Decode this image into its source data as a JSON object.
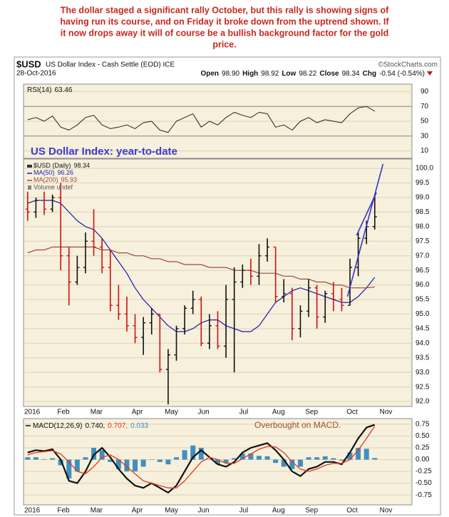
{
  "headline": [
    "The dollar staged a significant rally October, but this rally is showing signs of",
    "having run its course, and on Friday it broke down from the uptrend shown. If",
    "it now drops away it will of course be a bullish background factor for the gold",
    "price."
  ],
  "header": {
    "symbol": "$USD",
    "name": "US Dollar Index - Cash Settle (EOD) ICE",
    "source": "©StockCharts.com",
    "date": "28-Oct-2016",
    "quote": [
      [
        "Open",
        "98.90"
      ],
      [
        "High",
        "98.92"
      ],
      [
        "Low",
        "98.22"
      ],
      [
        "Close",
        "98.34"
      ],
      [
        "Chg",
        "-0.54 (-0.54%)"
      ]
    ]
  },
  "chart_data": [
    {
      "type": "line",
      "ylim": [
        0,
        100
      ],
      "yticks": [
        10,
        30,
        50,
        70,
        90
      ],
      "grid": true,
      "hlines": [
        30,
        70
      ],
      "series": [
        {
          "name": "RSI(14)",
          "color": "#222222",
          "values": [
            52,
            55,
            50,
            57,
            42,
            38,
            45,
            55,
            58,
            45,
            40,
            42,
            45,
            40,
            48,
            50,
            38,
            35,
            50,
            55,
            60,
            42,
            50,
            45,
            55,
            62,
            58,
            55,
            62,
            60,
            42,
            45,
            38,
            50,
            55,
            48,
            52,
            50,
            48,
            60,
            68,
            70,
            63.46,
            null,
            null,
            null,
            null
          ]
        }
      ]
    },
    {
      "type": "ohlc",
      "title": "US Dollar Index: year-to-date",
      "name": "$USD (Daily)",
      "legend_extra": "Volume undef",
      "ylim": [
        91.83,
        100.32
      ],
      "grid": true,
      "yticks": [
        {
          "value": 92,
          "label": "92.0"
        },
        92.5,
        {
          "value": 93,
          "label": "93.0"
        },
        93.5,
        {
          "value": 94,
          "label": "94.0"
        },
        94.5,
        {
          "value": 95,
          "label": "95.0"
        },
        95.5,
        {
          "value": 96,
          "label": "96.0"
        },
        96.5,
        {
          "value": 97,
          "label": "97.0"
        },
        97.5,
        {
          "value": 98,
          "label": "98.0"
        },
        98.5,
        {
          "value": 99,
          "label": "99.0"
        },
        99.5,
        {
          "value": 100,
          "label": "100.0"
        }
      ],
      "categories": [
        "2016",
        null,
        null,
        null,
        "Feb",
        null,
        null,
        null,
        "Mar",
        null,
        null,
        null,
        null,
        "Apr",
        null,
        null,
        null,
        "May",
        null,
        null,
        null,
        "Jun",
        null,
        null,
        null,
        null,
        "Jul",
        null,
        null,
        null,
        "Aug",
        null,
        null,
        null,
        "Sep",
        null,
        null,
        null,
        null,
        "Oct",
        null,
        null,
        null,
        "Nov",
        null,
        null,
        null
      ],
      "open": [
        98.6,
        98.5,
        98.9,
        98.6,
        99.0,
        97.0,
        96.1,
        96.6,
        97.5,
        97.3,
        96.6,
        95.3,
        95.0,
        94.6,
        94.2,
        94.7,
        95.0,
        93.1,
        93.6,
        94.5,
        95.2,
        95.5,
        94.0,
        94.6,
        93.9,
        95.5,
        96.1,
        96.5,
        96.3,
        97.0,
        97.3,
        95.6,
        95.7,
        94.5,
        95.1,
        95.9,
        94.9,
        95.7,
        95.5,
        95.3,
        96.6,
        97.6,
        98.0,
        null,
        null,
        null,
        null
      ],
      "high": [
        99.2,
        99.0,
        99.2,
        99.1,
        99.5,
        97.3,
        97.0,
        97.8,
        98.6,
        97.6,
        97.2,
        96.0,
        95.6,
        95.0,
        94.9,
        95.2,
        95.0,
        93.8,
        94.6,
        95.3,
        95.8,
        95.6,
        95.0,
        95.1,
        96.0,
        96.6,
        96.7,
        96.9,
        97.4,
        97.6,
        97.3,
        96.2,
        95.9,
        95.3,
        96.2,
        96.0,
        95.8,
        96.1,
        95.9,
        96.9,
        97.8,
        98.2,
        99.1,
        null,
        null,
        null,
        null
      ],
      "low": [
        98.2,
        98.3,
        98.4,
        98.5,
        96.5,
        95.3,
        96.0,
        96.4,
        97.0,
        96.4,
        95.1,
        94.8,
        94.4,
        94.0,
        93.6,
        94.3,
        93.0,
        91.9,
        93.4,
        94.3,
        95.0,
        93.9,
        93.8,
        93.8,
        93.5,
        93.0,
        95.9,
        96.0,
        96.0,
        96.8,
        95.4,
        95.4,
        94.1,
        94.2,
        94.9,
        94.5,
        94.7,
        95.1,
        95.1,
        95.3,
        96.3,
        97.4,
        97.9,
        null,
        null,
        null,
        null
      ],
      "close": [
        98.5,
        98.9,
        98.6,
        99.0,
        97.0,
        96.1,
        96.6,
        97.5,
        97.3,
        96.6,
        95.3,
        95.0,
        94.6,
        94.2,
        94.7,
        95.0,
        93.1,
        93.6,
        94.5,
        95.2,
        95.5,
        94.0,
        94.6,
        93.9,
        95.5,
        96.1,
        96.5,
        96.3,
        97.0,
        97.3,
        95.6,
        95.7,
        94.5,
        95.1,
        95.9,
        94.9,
        95.7,
        95.5,
        95.3,
        96.6,
        97.6,
        98.0,
        98.34,
        null,
        null,
        null,
        null
      ],
      "up_color": "#111111",
      "down_color": "#cc1111",
      "series": [
        {
          "name": "MA(50)",
          "color": "#1c1ca8",
          "values": [
            98.8,
            98.9,
            98.9,
            98.9,
            98.8,
            98.5,
            98.2,
            98.0,
            97.9,
            97.6,
            97.2,
            96.8,
            96.4,
            95.9,
            95.5,
            95.2,
            94.9,
            94.6,
            94.4,
            94.4,
            94.5,
            94.7,
            94.8,
            94.8,
            94.6,
            94.5,
            94.4,
            94.4,
            94.6,
            95.0,
            95.4,
            95.6,
            95.8,
            95.9,
            95.8,
            95.7,
            95.6,
            95.5,
            95.4,
            95.4,
            95.6,
            95.9,
            96.26,
            null,
            null,
            null,
            null
          ]
        },
        {
          "name": "MA(200)",
          "color": "#a04a3a",
          "values": [
            97.1,
            97.2,
            97.2,
            97.3,
            97.3,
            97.3,
            97.3,
            97.3,
            97.3,
            97.2,
            97.2,
            97.1,
            97.1,
            97.0,
            97.0,
            96.9,
            96.9,
            96.8,
            96.8,
            96.7,
            96.7,
            96.7,
            96.6,
            96.6,
            96.6,
            96.5,
            96.5,
            96.5,
            96.4,
            96.4,
            96.4,
            96.3,
            96.3,
            96.2,
            96.2,
            96.1,
            96.1,
            96.0,
            96.0,
            95.9,
            95.9,
            95.9,
            95.93,
            null,
            null,
            null,
            null
          ]
        }
      ],
      "trendlines": [
        {
          "color": "#3333cc",
          "x": [
            38.7,
            43.0
          ],
          "y": [
            95.6,
            100.15
          ]
        },
        {
          "color": "#3333cc",
          "x": [
            39.8,
            42.2
          ],
          "y": [
            97.7,
            99.17
          ]
        }
      ]
    },
    {
      "type": "combo",
      "annotation": "Overbought on MACD.",
      "ylim": [
        -0.96,
        0.87
      ],
      "grid": true,
      "yticks": [
        {
          "value": -0.75,
          "label": "-0.75"
        },
        {
          "value": -0.5,
          "label": "-0.50"
        },
        {
          "value": -0.25,
          "label": "-0.25"
        },
        {
          "value": 0,
          "label": "0.00"
        },
        0.25,
        {
          "value": 0.5,
          "label": "0.50"
        },
        0.75
      ],
      "categories": [
        "2016",
        null,
        null,
        null,
        "Feb",
        null,
        null,
        null,
        "Mar",
        null,
        null,
        null,
        null,
        "Apr",
        null,
        null,
        null,
        "May",
        null,
        null,
        null,
        "Jun",
        null,
        null,
        null,
        null,
        "Jul",
        null,
        null,
        null,
        "Aug",
        null,
        null,
        null,
        "Sep",
        null,
        null,
        null,
        null,
        "Oct",
        null,
        null,
        null,
        "Nov",
        null,
        null,
        null
      ],
      "series": [
        {
          "kind": "bar",
          "color": "#3f8fc0",
          "latest_label": "0.033",
          "values": [
            0.05,
            0.05,
            0.01,
            0.03,
            -0.12,
            -0.4,
            -0.25,
            0.05,
            0.25,
            0.2,
            -0.05,
            -0.2,
            -0.25,
            -0.25,
            -0.15,
            0,
            -0.05,
            -0.1,
            0.05,
            0.2,
            0.3,
            0.25,
            0,
            -0.1,
            -0.07,
            0.03,
            0.13,
            0.13,
            0.08,
            0.07,
            -0.07,
            -0.15,
            -0.2,
            -0.15,
            0.05,
            0.05,
            0.07,
            0.03,
            -0.02,
            0.15,
            0.25,
            0.23,
            0.033,
            null,
            null,
            null,
            null
          ]
        },
        {
          "kind": "line",
          "name": "MACD(12,26,9)",
          "color": "#111111",
          "width": 2.2,
          "latest_label": "0.740,",
          "values": [
            0.15,
            0.2,
            0.18,
            0.22,
            0,
            -0.45,
            -0.5,
            -0.25,
            0.1,
            0.25,
            0.05,
            -0.2,
            -0.4,
            -0.55,
            -0.6,
            -0.5,
            -0.6,
            -0.7,
            -0.55,
            -0.25,
            0.05,
            0.2,
            0.05,
            -0.1,
            -0.15,
            -0.05,
            0.15,
            0.25,
            0.3,
            0.35,
            0.2,
            0,
            -0.25,
            -0.35,
            -0.2,
            -0.15,
            -0.05,
            -0.05,
            -0.1,
            0.15,
            0.45,
            0.68,
            0.74,
            null,
            null,
            null,
            null
          ]
        },
        {
          "kind": "line",
          "color": "#e03a20",
          "width": 1.3,
          "latest_label": "0.707,",
          "values": [
            0.1,
            0.15,
            0.17,
            0.19,
            0.12,
            -0.05,
            -0.25,
            -0.3,
            -0.15,
            0.05,
            0.1,
            0,
            -0.15,
            -0.3,
            -0.45,
            -0.5,
            -0.55,
            -0.6,
            -0.6,
            -0.45,
            -0.25,
            -0.05,
            0.05,
            0,
            -0.08,
            -0.08,
            0.02,
            0.12,
            0.22,
            0.28,
            0.27,
            0.15,
            -0.05,
            -0.2,
            -0.25,
            -0.2,
            -0.12,
            -0.08,
            -0.08,
            0,
            0.2,
            0.45,
            0.707,
            null,
            null,
            null,
            null
          ]
        }
      ]
    }
  ]
}
